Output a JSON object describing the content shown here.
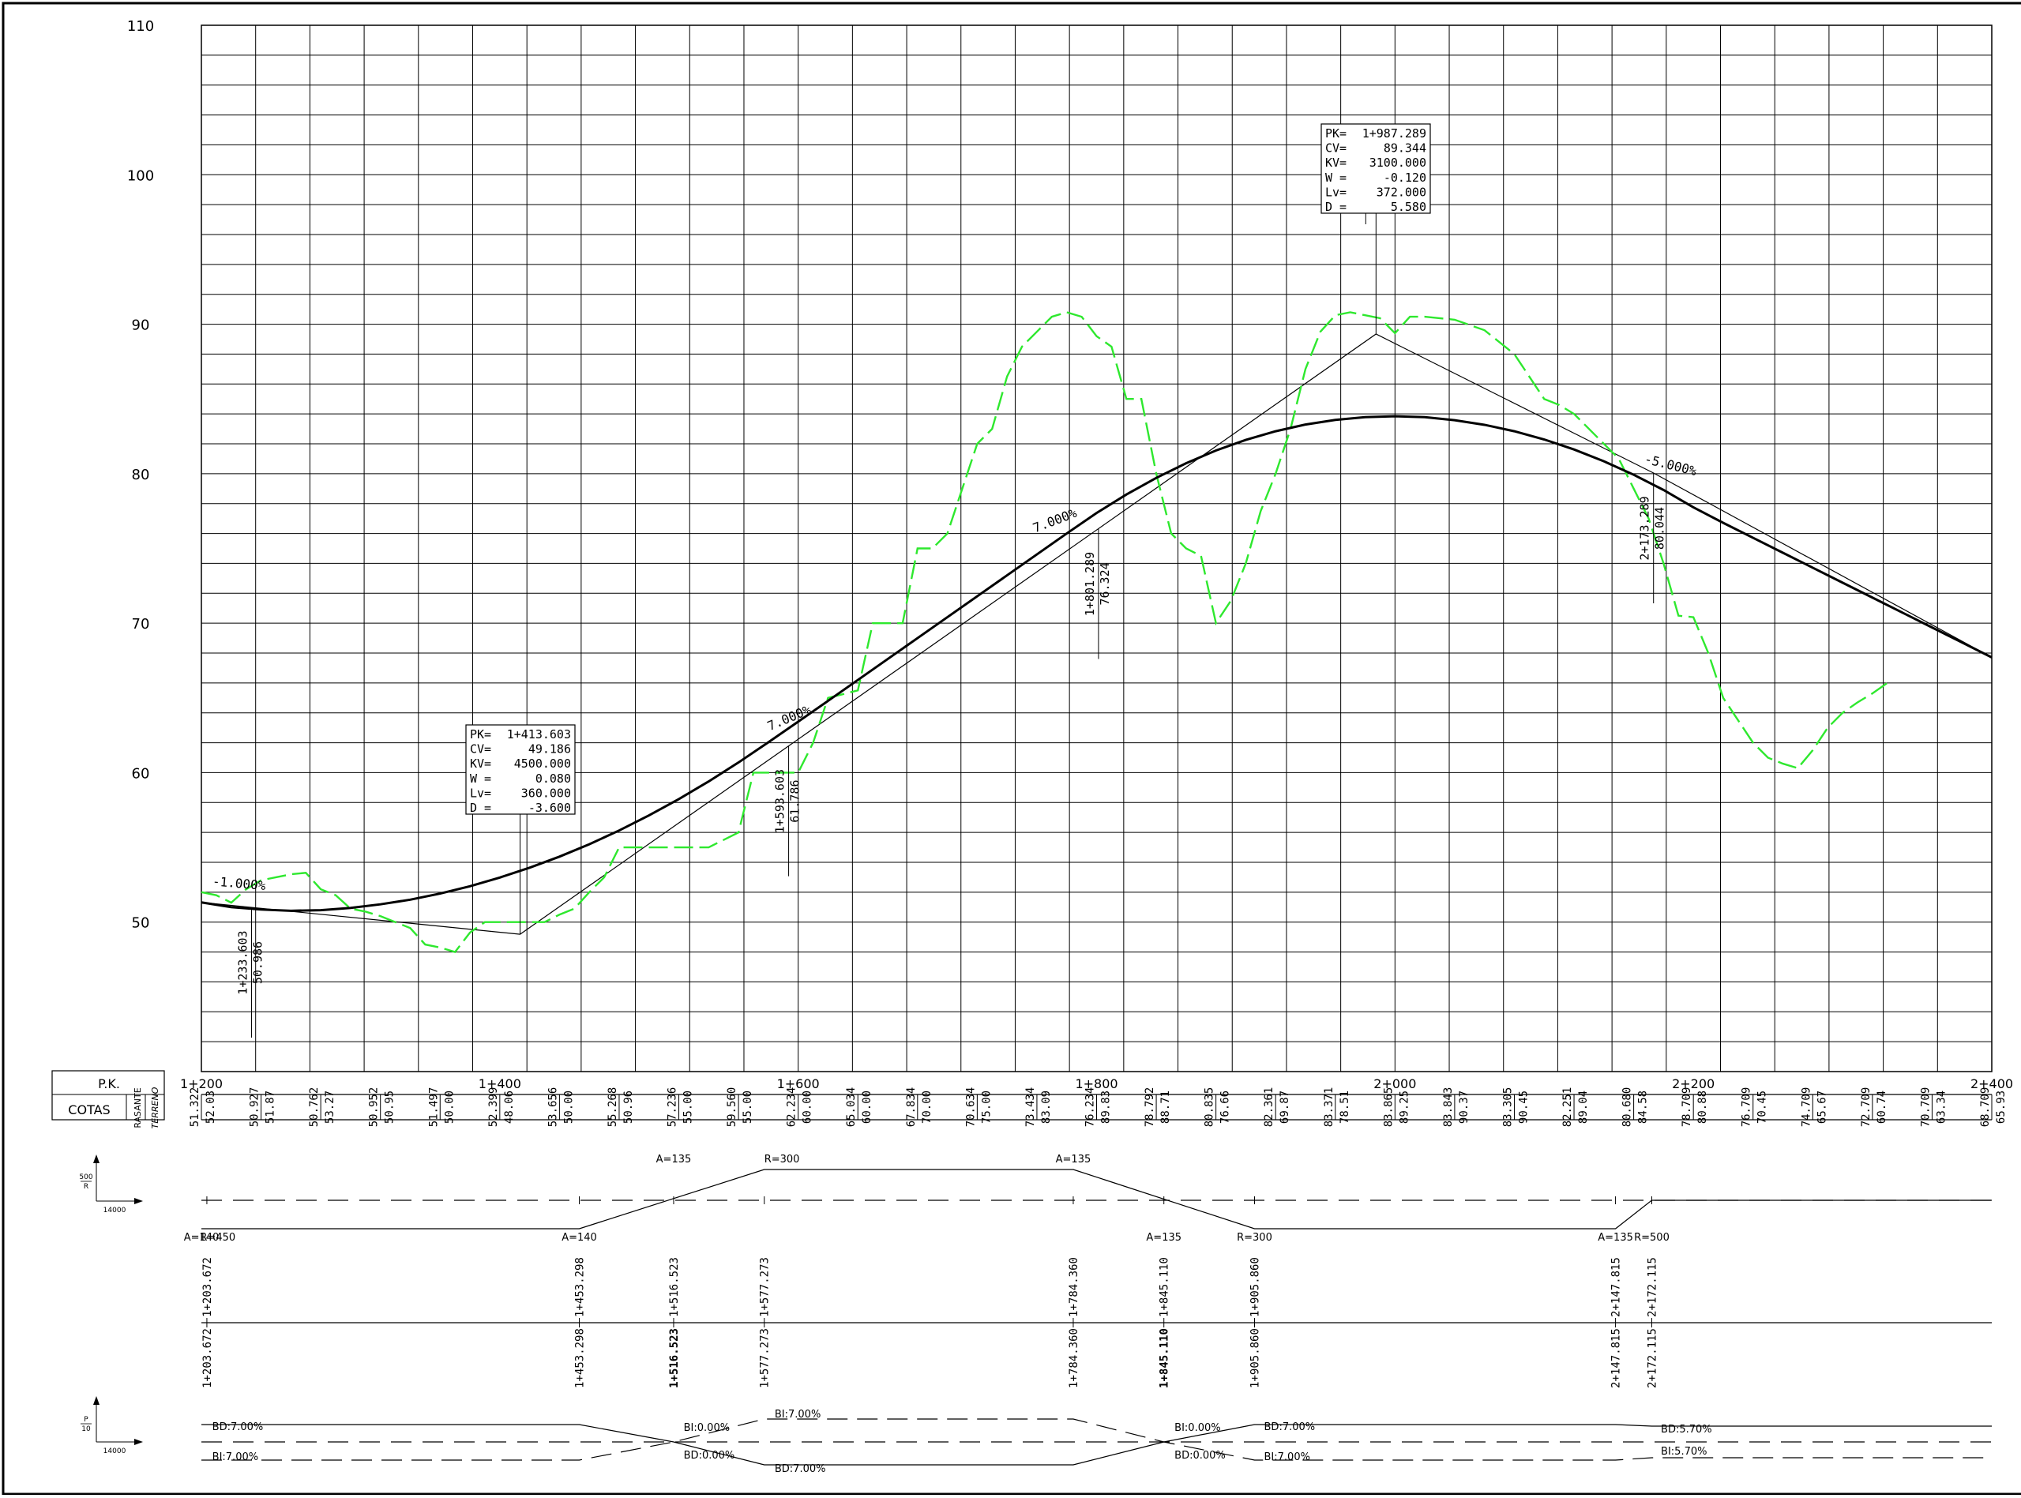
{
  "chart_data": {
    "type": "line",
    "ylim": [
      40,
      110
    ],
    "xlim": [
      1200,
      2400
    ],
    "y_ticks": [
      "110",
      "100",
      "90",
      "80",
      "70",
      "60",
      "50"
    ],
    "x_ticks": [
      "1+200",
      "1+400",
      "1+600",
      "1+800",
      "2+000",
      "2+200",
      "2+400"
    ],
    "series": [
      {
        "name": "rasante",
        "points": [
          [
            1200,
            51.32
          ],
          [
            1220,
            51.0
          ],
          [
            1240,
            50.84
          ],
          [
            1260,
            50.76
          ],
          [
            1280,
            50.8
          ],
          [
            1300,
            50.95
          ],
          [
            1320,
            51.19
          ],
          [
            1340,
            51.5
          ],
          [
            1360,
            51.91
          ],
          [
            1380,
            52.4
          ],
          [
            1400,
            52.98
          ],
          [
            1420,
            53.64
          ],
          [
            1440,
            54.38
          ],
          [
            1460,
            55.21
          ],
          [
            1480,
            56.13
          ],
          [
            1500,
            57.14
          ],
          [
            1520,
            58.23
          ],
          [
            1540,
            59.41
          ],
          [
            1560,
            60.68
          ],
          [
            1580,
            62.03
          ],
          [
            1600,
            63.41
          ],
          [
            1620,
            64.8
          ],
          [
            1640,
            66.2
          ],
          [
            1660,
            67.6
          ],
          [
            1680,
            69.0
          ],
          [
            1700,
            70.4
          ],
          [
            1720,
            71.8
          ],
          [
            1740,
            73.2
          ],
          [
            1760,
            74.6
          ],
          [
            1780,
            76.0
          ],
          [
            1800,
            77.37
          ],
          [
            1820,
            78.61
          ],
          [
            1840,
            79.72
          ],
          [
            1860,
            80.7
          ],
          [
            1880,
            81.55
          ],
          [
            1900,
            82.26
          ],
          [
            1920,
            82.84
          ],
          [
            1940,
            83.29
          ],
          [
            1960,
            83.6
          ],
          [
            1980,
            83.78
          ],
          [
            2000,
            83.84
          ],
          [
            2020,
            83.78
          ],
          [
            2040,
            83.58
          ],
          [
            2060,
            83.27
          ],
          [
            2080,
            82.84
          ],
          [
            2100,
            82.29
          ],
          [
            2120,
            81.62
          ],
          [
            2140,
            80.83
          ],
          [
            2160,
            79.93
          ],
          [
            2180,
            78.91
          ],
          [
            2200,
            77.75
          ],
          [
            2220,
            76.71
          ],
          [
            2240,
            75.71
          ],
          [
            2260,
            74.71
          ],
          [
            2280,
            73.71
          ],
          [
            2300,
            72.71
          ],
          [
            2320,
            71.71
          ],
          [
            2340,
            70.71
          ],
          [
            2360,
            69.71
          ],
          [
            2380,
            68.71
          ],
          [
            2400,
            67.71
          ]
        ]
      },
      {
        "name": "terreno",
        "points": [
          [
            1200,
            52.0
          ],
          [
            1210,
            51.8
          ],
          [
            1220,
            51.3
          ],
          [
            1230,
            52.2
          ],
          [
            1240,
            52.8
          ],
          [
            1250,
            53.0
          ],
          [
            1260,
            53.2
          ],
          [
            1270,
            53.3
          ],
          [
            1280,
            52.2
          ],
          [
            1290,
            51.8
          ],
          [
            1300,
            50.9
          ],
          [
            1310,
            50.7
          ],
          [
            1320,
            50.4
          ],
          [
            1330,
            50.0
          ],
          [
            1340,
            49.6
          ],
          [
            1350,
            48.5
          ],
          [
            1360,
            48.3
          ],
          [
            1370,
            48.0
          ],
          [
            1380,
            49.3
          ],
          [
            1390,
            50.0
          ],
          [
            1400,
            50.0
          ],
          [
            1410,
            50.0
          ],
          [
            1420,
            50.0
          ],
          [
            1430,
            50.0
          ],
          [
            1440,
            50.5
          ],
          [
            1450,
            50.9
          ],
          [
            1460,
            52.0
          ],
          [
            1470,
            53.0
          ],
          [
            1480,
            55.0
          ],
          [
            1500,
            55.0
          ],
          [
            1520,
            55.0
          ],
          [
            1540,
            55.0
          ],
          [
            1560,
            56.0
          ],
          [
            1570,
            60.0
          ],
          [
            1580,
            60.0
          ],
          [
            1590,
            60.0
          ],
          [
            1600,
            60.0
          ],
          [
            1610,
            62.0
          ],
          [
            1620,
            65.0
          ],
          [
            1640,
            65.5
          ],
          [
            1650,
            70.0
          ],
          [
            1660,
            70.0
          ],
          [
            1670,
            70.0
          ],
          [
            1680,
            75.0
          ],
          [
            1690,
            75.0
          ],
          [
            1700,
            76.0
          ],
          [
            1710,
            79.0
          ],
          [
            1720,
            82.0
          ],
          [
            1730,
            83.0
          ],
          [
            1740,
            86.5
          ],
          [
            1750,
            88.5
          ],
          [
            1760,
            89.5
          ],
          [
            1770,
            90.5
          ],
          [
            1780,
            90.8
          ],
          [
            1790,
            90.5
          ],
          [
            1800,
            89.2
          ],
          [
            1810,
            88.5
          ],
          [
            1820,
            85.0
          ],
          [
            1830,
            85.0
          ],
          [
            1840,
            80.0
          ],
          [
            1850,
            76.0
          ],
          [
            1860,
            75.0
          ],
          [
            1870,
            74.5
          ],
          [
            1880,
            70.0
          ],
          [
            1890,
            71.5
          ],
          [
            1900,
            74.0
          ],
          [
            1910,
            77.5
          ],
          [
            1920,
            80.0
          ],
          [
            1930,
            83.0
          ],
          [
            1940,
            87.0
          ],
          [
            1950,
            89.5
          ],
          [
            1960,
            90.6
          ],
          [
            1970,
            90.8
          ],
          [
            1980,
            90.6
          ],
          [
            1990,
            90.4
          ],
          [
            2000,
            89.4
          ],
          [
            2010,
            90.5
          ],
          [
            2020,
            90.5
          ],
          [
            2040,
            90.3
          ],
          [
            2060,
            89.6
          ],
          [
            2080,
            88.0
          ],
          [
            2100,
            85.0
          ],
          [
            2110,
            84.6
          ],
          [
            2120,
            84.0
          ],
          [
            2140,
            82.0
          ],
          [
            2150,
            81.0
          ],
          [
            2160,
            79.0
          ],
          [
            2170,
            77.0
          ],
          [
            2180,
            74.0
          ],
          [
            2190,
            70.5
          ],
          [
            2200,
            70.4
          ],
          [
            2210,
            68.0
          ],
          [
            2220,
            65.0
          ],
          [
            2230,
            63.5
          ],
          [
            2240,
            62.0
          ],
          [
            2250,
            61.0
          ],
          [
            2260,
            60.6
          ],
          [
            2270,
            60.3
          ],
          [
            2280,
            61.5
          ],
          [
            2290,
            63.0
          ],
          [
            2300,
            64.0
          ],
          [
            2310,
            64.7
          ],
          [
            2320,
            65.3
          ],
          [
            2330,
            66.0
          ]
        ]
      },
      {
        "name": "tangentes",
        "points": [
          [
            1200,
            51.32
          ],
          [
            1233.603,
            50.986
          ],
          [
            1413.603,
            49.186
          ],
          [
            1593.603,
            61.786
          ],
          [
            1801.289,
            76.324
          ],
          [
            1987.289,
            89.344
          ],
          [
            2173.289,
            80.044
          ],
          [
            2400,
            67.71
          ]
        ]
      }
    ]
  },
  "slopes": [
    {
      "label": "-1.000%",
      "x": 1225,
      "y": 52.3
    },
    {
      "label": "7.000%",
      "x": 1595,
      "y": 63.4
    },
    {
      "label": "7.000%",
      "x": 1773,
      "y": 76.6
    },
    {
      "label": "-5.000%",
      "x": 2184,
      "y": 80.3
    }
  ],
  "vertices": [
    {
      "pk": "1+233.603",
      "cota": "50.986",
      "x": 1233.603,
      "y": 50.986
    },
    {
      "pk": "1+593.603",
      "cota": "61.786",
      "x": 1593.603,
      "y": 61.786
    },
    {
      "pk": "1+801.289",
      "cota": "76.324",
      "x": 1801.289,
      "y": 76.324
    },
    {
      "pk": "2+173.289",
      "cota": "80.044",
      "x": 2173.289,
      "y": 80.044
    }
  ],
  "info_boxes": [
    {
      "lines": [
        [
          "PK=",
          "1+413.603"
        ],
        [
          "CV=",
          "49.186"
        ],
        [
          "KV=",
          "4500.000"
        ],
        [
          "W =",
          "0.080"
        ],
        [
          "Lv=",
          "360.000"
        ],
        [
          "D =",
          "-3.600"
        ]
      ],
      "x": 1413.603,
      "y": 49.186
    },
    {
      "lines": [
        [
          "PK=",
          "1+987.289"
        ],
        [
          "CV=",
          "89.344"
        ],
        [
          "KV=",
          "3100.000"
        ],
        [
          "W =",
          "-0.120"
        ],
        [
          "Lv=",
          "372.000"
        ],
        [
          "D =",
          "5.580"
        ]
      ],
      "x": 1987.289,
      "y": 89.344
    }
  ],
  "band": {
    "pk_label": "P.K.",
    "cotas_label": "COTAS",
    "rasante_label": "RASANTE",
    "terreno_label": "TERRENO",
    "values": [
      [
        "51.322",
        "52.03"
      ],
      [
        "50.927",
        "51.87"
      ],
      [
        "50.762",
        "53.27"
      ],
      [
        "50.952",
        "50.95"
      ],
      [
        "51.497",
        "50.00"
      ],
      [
        "52.399",
        "48.06"
      ],
      [
        "53.656",
        "50.00"
      ],
      [
        "55.268",
        "50.96"
      ],
      [
        "57.236",
        "55.00"
      ],
      [
        "59.560",
        "55.00"
      ],
      [
        "62.234",
        "60.00"
      ],
      [
        "65.034",
        "60.00"
      ],
      [
        "67.834",
        "70.00"
      ],
      [
        "70.634",
        "75.00"
      ],
      [
        "73.434",
        "83.09"
      ],
      [
        "76.234",
        "89.83"
      ],
      [
        "78.792",
        "88.71"
      ],
      [
        "80.835",
        "76.66"
      ],
      [
        "82.361",
        "69.87"
      ],
      [
        "83.371",
        "78.51"
      ],
      [
        "83.865",
        "89.25"
      ],
      [
        "83.843",
        "90.37"
      ],
      [
        "83.305",
        "90.45"
      ],
      [
        "82.251",
        "89.04"
      ],
      [
        "80.680",
        "84.58"
      ],
      [
        "78.709",
        "80.88"
      ],
      [
        "76.709",
        "70.45"
      ],
      [
        "74.709",
        "65.67"
      ],
      [
        "72.709",
        "60.74"
      ],
      [
        "70.709",
        "63.34"
      ],
      [
        "68.709",
        "65.93"
      ]
    ]
  },
  "alignment": {
    "labels": [
      {
        "text": "A=135",
        "pk": 1516.523,
        "row": "top"
      },
      {
        "text": "R=300",
        "pk": 1577.273,
        "row": "top"
      },
      {
        "text": "A=135",
        "pk": 1784.36,
        "row": "top"
      },
      {
        "text": "A=140",
        "pk": 1200,
        "row": "bottom"
      },
      {
        "text": "R=450",
        "pk": 1211,
        "row": "bottom"
      },
      {
        "text": "A=140",
        "pk": 1453.298,
        "row": "bottom"
      },
      {
        "text": "A=135",
        "pk": 1845.11,
        "row": "bottom"
      },
      {
        "text": "R=300",
        "pk": 1905.86,
        "row": "bottom"
      },
      {
        "text": "A=135",
        "pk": 2147.815,
        "row": "bottom"
      },
      {
        "text": "R=500",
        "pk": 2172.115,
        "row": "bottom"
      }
    ],
    "stations": [
      "1+203.672",
      "1+453.298",
      "1+516.523",
      "1+577.273",
      "1+784.360",
      "1+845.110",
      "1+905.860",
      "2+147.815",
      "2+172.115"
    ],
    "station_pks": [
      1203.672,
      1453.298,
      1516.523,
      1577.273,
      1784.36,
      1845.11,
      1905.86,
      2147.815,
      2172.115
    ],
    "legend_top": {
      "num": "500",
      "den": "R",
      "scale": "14000"
    },
    "legend_bottom": {
      "num": "P",
      "den": "10",
      "scale": "14000"
    }
  },
  "superelevation": {
    "labels": [
      {
        "text": "BD:7.00%",
        "pk": 1203,
        "row": "u"
      },
      {
        "text": "BI:7.00%",
        "pk": 1203,
        "row": "l"
      },
      {
        "text": "BI:0.00%",
        "pk": 1519,
        "row": "mu"
      },
      {
        "text": "BD:0.00%",
        "pk": 1519,
        "row": "ml"
      },
      {
        "text": "BI:7.00%",
        "pk": 1580,
        "row": "t"
      },
      {
        "text": "BD:7.00%",
        "pk": 1580,
        "row": "b"
      },
      {
        "text": "BI:0.00%",
        "pk": 1848,
        "row": "mu"
      },
      {
        "text": "BD:0.00%",
        "pk": 1848,
        "row": "ml"
      },
      {
        "text": "BD:7.00%",
        "pk": 1908,
        "row": "u"
      },
      {
        "text": "BI:7.00%",
        "pk": 1908,
        "row": "l"
      },
      {
        "text": "BD:5.70%",
        "pk": 2174,
        "row": "mu2"
      },
      {
        "text": "BI:5.70%",
        "pk": 2174,
        "row": "ml2"
      }
    ]
  }
}
